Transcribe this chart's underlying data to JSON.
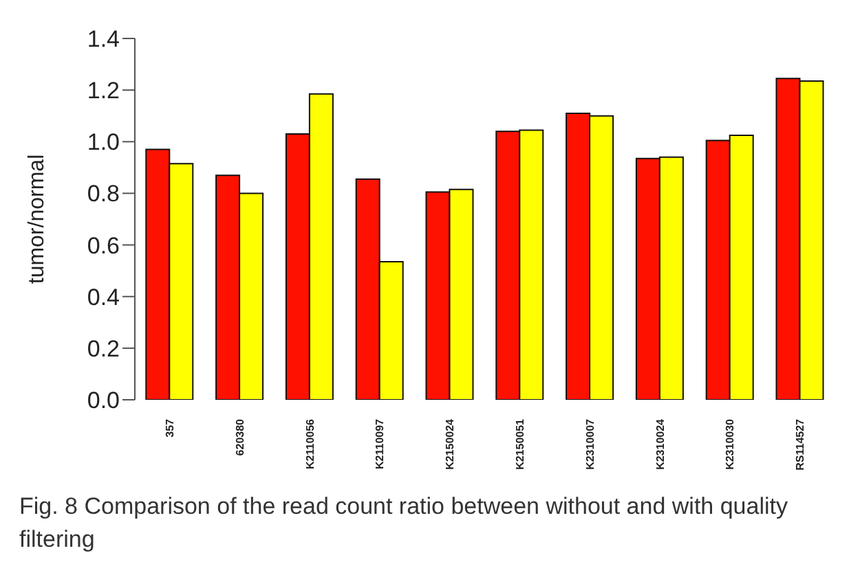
{
  "chart_data": {
    "type": "bar",
    "ylabel": "tumor/normal",
    "categories": [
      "357",
      "620380",
      "K2110056",
      "K2110097",
      "K2150024",
      "K2150051",
      "K2310007",
      "K2310024",
      "K2310030",
      "RS114527"
    ],
    "series": [
      {
        "color": "#ff1100",
        "values": [
          0.97,
          0.87,
          1.03,
          0.855,
          0.805,
          1.04,
          1.11,
          0.935,
          1.005,
          1.245
        ]
      },
      {
        "color": "#ffff00",
        "values": [
          0.915,
          0.8,
          1.185,
          0.535,
          0.815,
          1.045,
          1.1,
          0.94,
          1.025,
          1.235
        ]
      }
    ],
    "ylim": [
      0,
      1.4
    ],
    "yticks": [
      {
        "value": 0,
        "label": "0.0"
      },
      0.2,
      0.4,
      0.6,
      0.8,
      {
        "value": 1,
        "label": "1.0"
      },
      1.2,
      1.4
    ],
    "grid": false,
    "legend": false,
    "annotations": [
      "Fig. 8 Comparison of the read count ratio between without and with quality filtering"
    ]
  }
}
